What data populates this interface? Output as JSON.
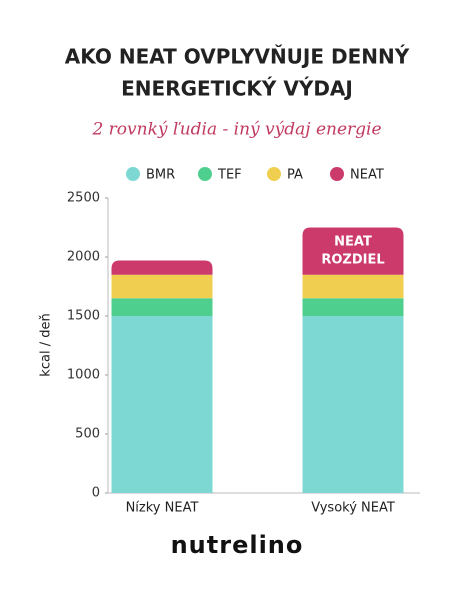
{
  "chart_data": {
    "type": "stacked_bar",
    "title": [
      "AKO NEAT OVPLYVŇUJE DENNÝ",
      "ENERGETICKÝ VÝDAJ"
    ],
    "subtitle": "2 rovnký ľudia - iný výdaj energie",
    "y_label": "kcal / deň",
    "categories": [
      "Nízky NEAT",
      "Vysoký NEAT"
    ],
    "series": [
      {
        "name": "BMR",
        "color": "#7dd8d3",
        "values": [
          1500,
          1500
        ]
      },
      {
        "name": "TEF",
        "color": "#4fcf8d",
        "values": [
          150,
          150
        ]
      },
      {
        "name": "PA",
        "color": "#f0cf50",
        "values": [
          200,
          200
        ]
      },
      {
        "name": "NEAT",
        "color": "#cc3a6c",
        "values": [
          120,
          400
        ]
      }
    ],
    "annotation": [
      "NEAT",
      "ROZDIEL"
    ],
    "ylim": [
      0,
      2500
    ],
    "yticks": [
      0,
      500,
      1000,
      1500,
      2000,
      2500
    ],
    "legend": "top",
    "brand": "nutrelino"
  }
}
